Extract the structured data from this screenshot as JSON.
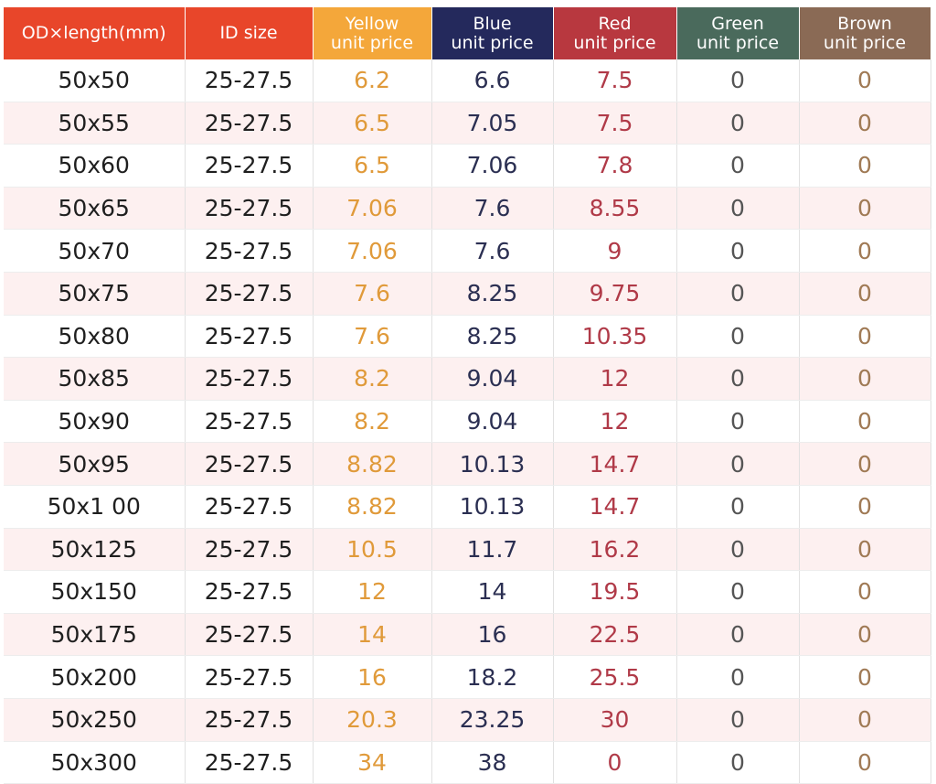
{
  "colors": {
    "od_header": "#e8462a",
    "id_header": "#e8462a",
    "yellow_header": "#f4a73a",
    "blue_header": "#24295c",
    "red_header": "#b8383f",
    "green_header": "#4a6a5c",
    "brown_header": "#8a6a55"
  },
  "headers": {
    "od": [
      "OD×length(mm)"
    ],
    "id": [
      "ID size"
    ],
    "yellow": [
      "Yellow",
      "unit price"
    ],
    "blue": [
      "Blue",
      "unit price"
    ],
    "red": [
      "Red",
      "unit price"
    ],
    "green": [
      "Green",
      "unit price"
    ],
    "brown": [
      "Brown",
      "unit price"
    ]
  },
  "rows": [
    {
      "od": "50x50",
      "id": "25-27.5",
      "yellow": "6.2",
      "blue": "6.6",
      "red": "7.5",
      "green": "0",
      "brown": "0"
    },
    {
      "od": "50x55",
      "id": "25-27.5",
      "yellow": "6.5",
      "blue": "7.05",
      "red": "7.5",
      "green": "0",
      "brown": "0"
    },
    {
      "od": "50x60",
      "id": "25-27.5",
      "yellow": "6.5",
      "blue": "7.06",
      "red": "7.8",
      "green": "0",
      "brown": "0"
    },
    {
      "od": "50x65",
      "id": "25-27.5",
      "yellow": "7.06",
      "blue": "7.6",
      "red": "8.55",
      "green": "0",
      "brown": "0"
    },
    {
      "od": "50x70",
      "id": "25-27.5",
      "yellow": "7.06",
      "blue": "7.6",
      "red": "9",
      "green": "0",
      "brown": "0"
    },
    {
      "od": "50x75",
      "id": "25-27.5",
      "yellow": "7.6",
      "blue": "8.25",
      "red": "9.75",
      "green": "0",
      "brown": "0"
    },
    {
      "od": "50x80",
      "id": "25-27.5",
      "yellow": "7.6",
      "blue": "8.25",
      "red": "10.35",
      "green": "0",
      "brown": "0"
    },
    {
      "od": "50x85",
      "id": "25-27.5",
      "yellow": "8.2",
      "blue": "9.04",
      "red": "12",
      "green": "0",
      "brown": "0"
    },
    {
      "od": "50x90",
      "id": "25-27.5",
      "yellow": "8.2",
      "blue": "9.04",
      "red": "12",
      "green": "0",
      "brown": "0"
    },
    {
      "od": "50x95",
      "id": "25-27.5",
      "yellow": "8.82",
      "blue": "10.13",
      "red": "14.7",
      "green": "0",
      "brown": "0"
    },
    {
      "od": "50x1 00",
      "id": "25-27.5",
      "yellow": "8.82",
      "blue": "10.13",
      "red": "14.7",
      "green": "0",
      "brown": "0"
    },
    {
      "od": "50x125",
      "id": "25-27.5",
      "yellow": "10.5",
      "blue": "11.7",
      "red": "16.2",
      "green": "0",
      "brown": "0"
    },
    {
      "od": "50x150",
      "id": "25-27.5",
      "yellow": "12",
      "blue": "14",
      "red": "19.5",
      "green": "0",
      "brown": "0"
    },
    {
      "od": "50x175",
      "id": "25-27.5",
      "yellow": "14",
      "blue": "16",
      "red": "22.5",
      "green": "0",
      "brown": "0"
    },
    {
      "od": "50x200",
      "id": "25-27.5",
      "yellow": "16",
      "blue": "18.2",
      "red": "25.5",
      "green": "0",
      "brown": "0"
    },
    {
      "od": "50x250",
      "id": "25-27.5",
      "yellow": "20.3",
      "blue": "23.25",
      "red": "30",
      "green": "0",
      "brown": "0"
    },
    {
      "od": "50x300",
      "id": "25-27.5",
      "yellow": "34",
      "blue": "38",
      "red": "0",
      "green": "0",
      "brown": "0"
    }
  ]
}
